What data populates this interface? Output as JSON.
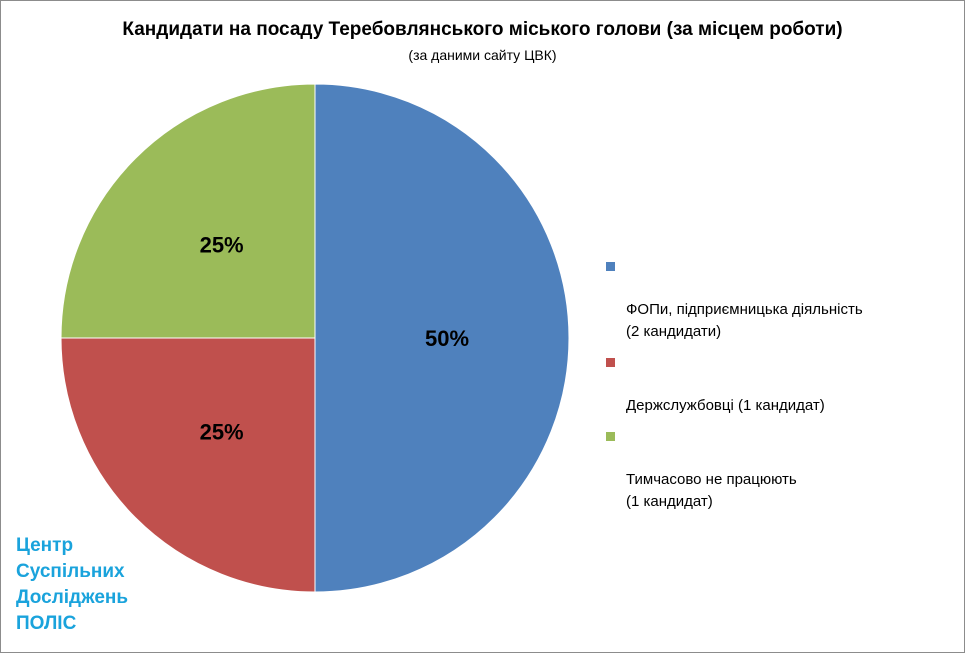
{
  "chart_data": {
    "type": "pie",
    "title": "Кандидати на посаду Теребовлянського міського голови (за місцем роботи)",
    "subtitle": "(за даними сайту ЦВК)",
    "slices": [
      {
        "label": "ФОПи, підприємницька діяльність\n(2 кандидати)",
        "value": 50,
        "value_label": "50%",
        "color": "#4f81bd"
      },
      {
        "label": "Держслужбовці  (1 кандидат)",
        "value": 25,
        "value_label": "25%",
        "color": "#c0504d"
      },
      {
        "label": "Тимчасово не працюють\n(1 кандидат)",
        "value": 25,
        "value_label": "25%",
        "color": "#9bbb59"
      }
    ],
    "start_angle": "12 o'clock",
    "direction": "clockwise",
    "legend_position": "right"
  },
  "watermark": {
    "lines": [
      "Центр",
      "Суспільних",
      "Досліджень",
      "ПОЛІС"
    ],
    "color": "#1aa3dc"
  }
}
